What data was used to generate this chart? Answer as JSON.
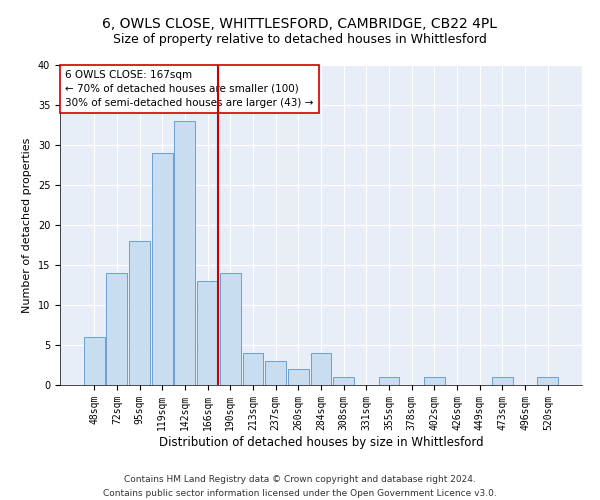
{
  "title1": "6, OWLS CLOSE, WHITTLESFORD, CAMBRIDGE, CB22 4PL",
  "title2": "Size of property relative to detached houses in Whittlesford",
  "xlabel": "Distribution of detached houses by size in Whittlesford",
  "ylabel": "Number of detached properties",
  "bar_labels": [
    "48sqm",
    "72sqm",
    "95sqm",
    "119sqm",
    "142sqm",
    "166sqm",
    "190sqm",
    "213sqm",
    "237sqm",
    "260sqm",
    "284sqm",
    "308sqm",
    "331sqm",
    "355sqm",
    "378sqm",
    "402sqm",
    "426sqm",
    "449sqm",
    "473sqm",
    "496sqm",
    "520sqm"
  ],
  "bar_values": [
    6,
    14,
    18,
    29,
    33,
    13,
    14,
    4,
    3,
    2,
    4,
    1,
    0,
    1,
    0,
    1,
    0,
    0,
    1,
    0,
    1
  ],
  "bar_color": "#c9ddf0",
  "bar_edge_color": "#6a9fd0",
  "vline_x_idx": 5,
  "vline_color": "#cc0000",
  "annotation_line1": "6 OWLS CLOSE: 167sqm",
  "annotation_line2": "← 70% of detached houses are smaller (100)",
  "annotation_line3": "30% of semi-detached houses are larger (43) →",
  "annotation_box_color": "#ffffff",
  "annotation_box_edge": "#cc0000",
  "ylim": [
    0,
    40
  ],
  "yticks": [
    0,
    5,
    10,
    15,
    20,
    25,
    30,
    35,
    40
  ],
  "plot_bg_color": "#e8eef8",
  "grid_color": "#ffffff",
  "footer": "Contains HM Land Registry data © Crown copyright and database right 2024.\nContains public sector information licensed under the Open Government Licence v3.0.",
  "title1_fontsize": 10,
  "title2_fontsize": 9,
  "xlabel_fontsize": 8.5,
  "ylabel_fontsize": 8,
  "tick_fontsize": 7,
  "annot_fontsize": 7.5,
  "footer_fontsize": 6.5
}
